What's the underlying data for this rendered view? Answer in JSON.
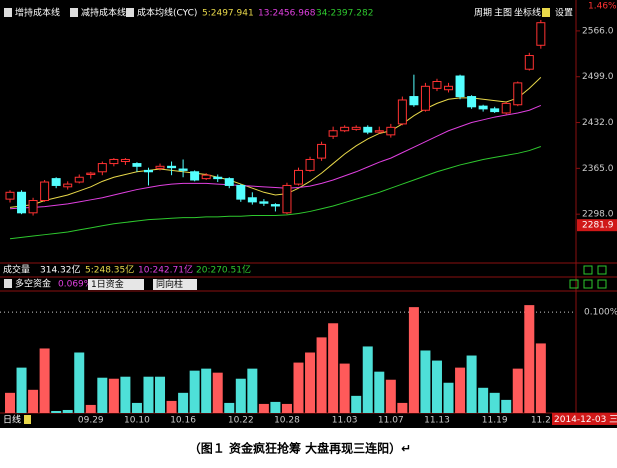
{
  "header": {
    "indicators": [
      "增持成本线",
      "减持成本线",
      "成本均线(CYC)",
      "5:2497.941",
      "13:2456.968",
      "34:2397.282"
    ],
    "toolbar": [
      "周期",
      "主图",
      "坐标线",
      "设置"
    ],
    "corner_label": "1.46%"
  },
  "volume_row": {
    "label": "成交量",
    "items": [
      "314.32亿",
      "5:248.35亿",
      "10:242.71亿",
      "20:270.51亿"
    ]
  },
  "date_badge": "2014-12-03 三",
  "caption": "（图１  资金疯狂抢筹  大盘再现三连阳）↵",
  "chart_data": [
    {
      "type": "candlestick",
      "up_color": "#ff3232",
      "down_color": "#54ffff",
      "open": [
        2320,
        2330,
        2300,
        2318,
        2350,
        2338,
        2345,
        2356,
        2360,
        2372,
        2375,
        2372,
        2362,
        2365,
        2368,
        2364,
        2360,
        2350,
        2352,
        2350,
        2340,
        2322,
        2316,
        2312,
        2300,
        2342,
        2362,
        2380,
        2412,
        2420,
        2422,
        2425,
        2418,
        2414,
        2430,
        2470,
        2450,
        2482,
        2480,
        2500,
        2470,
        2456,
        2452,
        2446,
        2458,
        2510,
        2545
      ],
      "high": [
        2333,
        2333,
        2322,
        2348,
        2352,
        2346,
        2356,
        2360,
        2375,
        2380,
        2380,
        2374,
        2366,
        2372,
        2375,
        2378,
        2362,
        2358,
        2356,
        2352,
        2342,
        2330,
        2320,
        2314,
        2344,
        2366,
        2382,
        2404,
        2426,
        2428,
        2428,
        2428,
        2426,
        2430,
        2470,
        2502,
        2490,
        2496,
        2490,
        2502,
        2472,
        2458,
        2455,
        2462,
        2492,
        2534,
        2582
      ],
      "low": [
        2315,
        2298,
        2296,
        2316,
        2336,
        2334,
        2343,
        2350,
        2355,
        2368,
        2370,
        2360,
        2340,
        2362,
        2355,
        2352,
        2346,
        2348,
        2345,
        2336,
        2316,
        2312,
        2310,
        2302,
        2298,
        2340,
        2360,
        2376,
        2408,
        2418,
        2420,
        2415,
        2416,
        2410,
        2428,
        2455,
        2448,
        2478,
        2476,
        2466,
        2452,
        2448,
        2446,
        2444,
        2456,
        2508,
        2540
      ],
      "close": [
        2330,
        2300,
        2318,
        2345,
        2340,
        2342,
        2352,
        2358,
        2372,
        2378,
        2378,
        2368,
        2360,
        2368,
        2366,
        2362,
        2348,
        2355,
        2350,
        2340,
        2320,
        2316,
        2314,
        2310,
        2340,
        2362,
        2378,
        2400,
        2420,
        2425,
        2425,
        2418,
        2420,
        2425,
        2465,
        2458,
        2485,
        2492,
        2485,
        2470,
        2455,
        2452,
        2448,
        2460,
        2490,
        2530,
        2578
      ],
      "series": [
        {
          "color": "#e8d84a",
          "values": [
            2308,
            2310,
            2312,
            2318,
            2322,
            2326,
            2332,
            2338,
            2346,
            2352,
            2356,
            2360,
            2362,
            2364,
            2362,
            2360,
            2358,
            2356,
            2352,
            2348,
            2342,
            2336,
            2330,
            2326,
            2328,
            2336,
            2346,
            2358,
            2372,
            2386,
            2398,
            2408,
            2416,
            2420,
            2430,
            2442,
            2452,
            2460,
            2466,
            2468,
            2468,
            2466,
            2464,
            2462,
            2468,
            2482,
            2498
          ]
        },
        {
          "color": "#e040e0",
          "values": [
            2306,
            2307,
            2308,
            2309,
            2311,
            2313,
            2316,
            2319,
            2322,
            2326,
            2330,
            2334,
            2337,
            2340,
            2342,
            2343,
            2343,
            2343,
            2342,
            2341,
            2340,
            2339,
            2338,
            2337,
            2336,
            2337,
            2339,
            2343,
            2348,
            2354,
            2360,
            2367,
            2374,
            2380,
            2388,
            2396,
            2404,
            2412,
            2420,
            2426,
            2432,
            2436,
            2440,
            2443,
            2446,
            2450,
            2457
          ]
        },
        {
          "color": "#2ec82e",
          "values": [
            2262,
            2264,
            2266,
            2268,
            2270,
            2272,
            2275,
            2278,
            2281,
            2284,
            2286,
            2288,
            2290,
            2291,
            2292,
            2293,
            2293,
            2294,
            2294,
            2295,
            2295,
            2296,
            2296,
            2296,
            2297,
            2299,
            2302,
            2306,
            2310,
            2315,
            2320,
            2325,
            2330,
            2336,
            2342,
            2348,
            2354,
            2360,
            2365,
            2370,
            2374,
            2378,
            2381,
            2384,
            2387,
            2391,
            2397
          ]
        }
      ],
      "ylim": [
        2226.6,
        2599.5
      ],
      "yticks": [
        {
          "value": 2566,
          "label": "2566.0"
        },
        {
          "value": 2499,
          "label": "2499.0"
        },
        {
          "value": 2432,
          "label": "2432.0"
        },
        {
          "value": 2365,
          "label": "2365.0"
        },
        {
          "value": 2298,
          "label": "2298.0"
        }
      ],
      "cursor_price": 2281.9
    },
    {
      "type": "bar",
      "title": "多空资金",
      "subtitle": "0.069%",
      "controls": [
        "1日资金",
        "同向柱"
      ],
      "xlabel": "日线",
      "categories": [
        null,
        null,
        null,
        null,
        null,
        null,
        null,
        "09.29",
        null,
        null,
        null,
        "10.10",
        null,
        null,
        null,
        "10.16",
        null,
        null,
        null,
        null,
        "10.22",
        null,
        null,
        null,
        "10.28",
        null,
        null,
        null,
        null,
        "11.03",
        null,
        null,
        null,
        "11.07",
        null,
        null,
        null,
        "11.13",
        null,
        null,
        null,
        null,
        "11.19",
        null,
        null,
        null,
        "11.2"
      ],
      "values": [
        0.02,
        0.045,
        0.023,
        0.064,
        0.002,
        0.003,
        0.06,
        0.008,
        0.035,
        0.034,
        0.036,
        0.01,
        0.036,
        0.036,
        0.012,
        0.02,
        0.042,
        0.044,
        0.04,
        0.01,
        0.034,
        0.044,
        0.009,
        0.011,
        0.009,
        0.05,
        0.06,
        0.075,
        0.089,
        0.049,
        0.017,
        0.066,
        0.041,
        0.033,
        0.01,
        0.105,
        0.062,
        0.052,
        0.03,
        0.045,
        0.057,
        0.025,
        0.02,
        0.013,
        0.044,
        0.107,
        0.069
      ],
      "colors": [
        "#ff5a5a",
        "#4ee0d8",
        "#ff5a5a",
        "#ff5a5a",
        "#4ee0d8",
        "#4ee0d8",
        "#4ee0d8",
        "#ff5a5a",
        "#4ee0d8",
        "#ff5a5a",
        "#4ee0d8",
        "#4ee0d8",
        "#4ee0d8",
        "#4ee0d8",
        "#ff5a5a",
        "#4ee0d8",
        "#4ee0d8",
        "#4ee0d8",
        "#ff5a5a",
        "#4ee0d8",
        "#4ee0d8",
        "#4ee0d8",
        "#ff5a5a",
        "#4ee0d8",
        "#ff5a5a",
        "#ff5a5a",
        "#ff5a5a",
        "#ff5a5a",
        "#ff5a5a",
        "#ff5a5a",
        "#4ee0d8",
        "#4ee0d8",
        "#4ee0d8",
        "#ff5a5a",
        "#ff5a5a",
        "#ff5a5a",
        "#4ee0d8",
        "#4ee0d8",
        "#4ee0d8",
        "#ff5a5a",
        "#4ee0d8",
        "#4ee0d8",
        "#4ee0d8",
        "#4ee0d8",
        "#ff5a5a",
        "#ff5a5a",
        "#ff5a5a"
      ],
      "ylim": [
        0,
        0.121
      ],
      "yticks": [
        {
          "value": 0.1,
          "label": "0.100%"
        }
      ]
    }
  ]
}
